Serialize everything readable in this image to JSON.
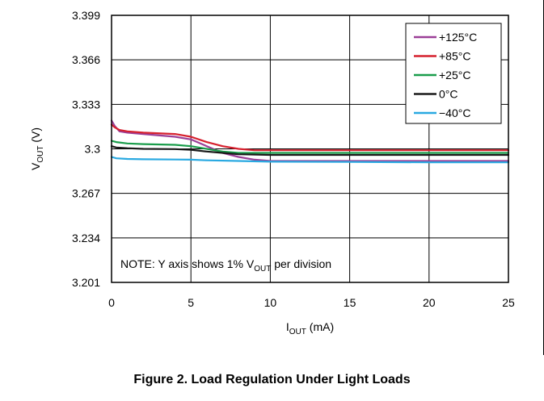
{
  "figure_caption": "Figure 2.  Load Regulation Under Light Loads",
  "colors": {
    "+125C": "#9b3f97",
    "+85C": "#d6202e",
    "+25C": "#1a9d4b",
    "0C": "#1a1a1a",
    "-40C": "#29a9e1"
  },
  "chart_data": {
    "type": "line",
    "title": "",
    "xlabel": {
      "main": "I",
      "sub": "OUT",
      "unit": " (mA)"
    },
    "ylabel": {
      "main": "V",
      "sub": "OUT",
      "unit": " (V)"
    },
    "xlim": [
      0,
      25
    ],
    "ylim": [
      3.201,
      3.399
    ],
    "x_ticks": [
      0,
      5,
      10,
      15,
      20,
      25
    ],
    "x_tick_labels": [
      "0",
      "5",
      "10",
      "15",
      "20",
      "25"
    ],
    "y_ticks": [
      3.201,
      3.234,
      3.267,
      3.3,
      3.333,
      3.366,
      3.399
    ],
    "y_tick_labels": [
      "3.201",
      "3.234",
      "3.267",
      "3.3",
      "3.333",
      "3.366",
      "3.399"
    ],
    "grid": true,
    "legend_position": "top-right",
    "annotation": {
      "prefix": "NOTE: Y axis shows 1% V",
      "sub": "OUT",
      "suffix": " per division"
    },
    "series": [
      {
        "name": "+125°C",
        "color_key": "+125C",
        "x": [
          0,
          0.2,
          0.5,
          1,
          2,
          4,
          5,
          6,
          7,
          8,
          9,
          10,
          15,
          20,
          25
        ],
        "y": [
          3.321,
          3.317,
          3.313,
          3.312,
          3.311,
          3.309,
          3.307,
          3.302,
          3.297,
          3.294,
          3.292,
          3.291,
          3.291,
          3.291,
          3.291
        ]
      },
      {
        "name": "+85°C",
        "color_key": "+85C",
        "x": [
          0,
          0.2,
          0.5,
          1,
          2,
          4,
          5,
          6,
          7,
          8,
          9,
          10,
          15,
          20,
          25
        ],
        "y": [
          3.318,
          3.316,
          3.314,
          3.313,
          3.312,
          3.311,
          3.309,
          3.305,
          3.302,
          3.3,
          3.299,
          3.299,
          3.299,
          3.299,
          3.299
        ]
      },
      {
        "name": "+25°C",
        "color_key": "+25C",
        "x": [
          0,
          0.3,
          1,
          2,
          4,
          5,
          6,
          7,
          8,
          10,
          15,
          20,
          25
        ],
        "y": [
          3.306,
          3.305,
          3.304,
          3.3035,
          3.303,
          3.302,
          3.3,
          3.298,
          3.297,
          3.297,
          3.297,
          3.297,
          3.297
        ]
      },
      {
        "name": "0°C",
        "color_key": "0C",
        "x": [
          0,
          0.3,
          1,
          2,
          4,
          5,
          6,
          7,
          8,
          10,
          15,
          20,
          25
        ],
        "y": [
          3.302,
          3.301,
          3.3005,
          3.3,
          3.2998,
          3.2993,
          3.298,
          3.297,
          3.296,
          3.2955,
          3.2955,
          3.2955,
          3.2955
        ]
      },
      {
        "name": "−40°C",
        "color_key": "-40C",
        "x": [
          0,
          0.3,
          1,
          2,
          4,
          5,
          6,
          8,
          10,
          15,
          20,
          25
        ],
        "y": [
          3.294,
          3.293,
          3.2925,
          3.2923,
          3.2921,
          3.292,
          3.2915,
          3.291,
          3.2905,
          3.2903,
          3.29,
          3.29
        ]
      }
    ]
  }
}
